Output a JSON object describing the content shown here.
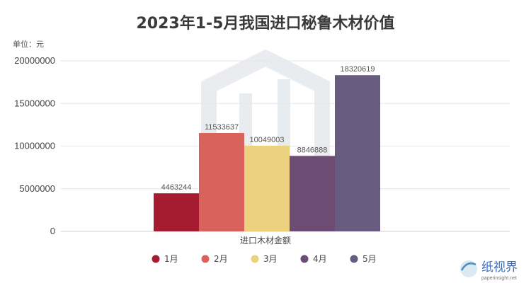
{
  "chart_data": {
    "type": "bar",
    "title": "2023年1-5月我国进口秘鲁木材价值",
    "unit_label": "单位：元",
    "categories": [
      "进口木材金额"
    ],
    "series": [
      {
        "name": "1月",
        "values": [
          4463244
        ],
        "color": "#a51b30"
      },
      {
        "name": "2月",
        "values": [
          11533637
        ],
        "color": "#d9625c"
      },
      {
        "name": "3月",
        "values": [
          10049003
        ],
        "color": "#ecd27e"
      },
      {
        "name": "4月",
        "values": [
          8846888
        ],
        "color": "#6d4c73"
      },
      {
        "name": "5月",
        "values": [
          18320619
        ],
        "color": "#675c80"
      }
    ],
    "ylim": [
      0,
      20000000
    ],
    "yticks": [
      0,
      5000000,
      10000000,
      15000000,
      20000000
    ],
    "grid": true,
    "legend_position": "bottom"
  },
  "watermark": {
    "brand": "纸视界",
    "url": "paperinsight.net"
  }
}
